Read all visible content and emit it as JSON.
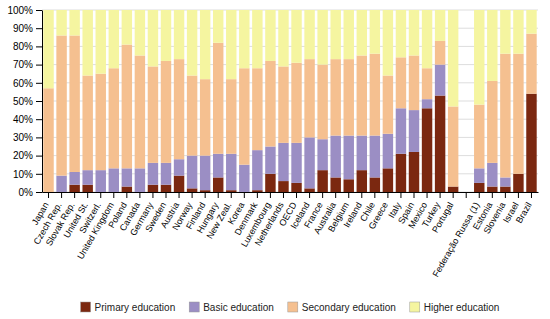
{
  "chart_data": {
    "type": "bar",
    "stacked": true,
    "categories": [
      "Japan",
      "Czech Rep.",
      "Slovak Rep.",
      "United St.",
      "Switzerl.",
      "United Kingdom",
      "Poland",
      "Canada",
      "Germany",
      "Sweden",
      "Austria",
      "Norway",
      "Finland",
      "Hungary",
      "New Zeal.",
      "Korea",
      "Denmark",
      "Luxembourg",
      "Netherlands",
      "OECD",
      "Iceland",
      "France",
      "Australia",
      "Belgium",
      "Ireland",
      "Chile",
      "Greece",
      "Italy",
      "Spain",
      "Mexico",
      "Turkey",
      "Portugal",
      null,
      "Federação Russa (1)",
      "Estonia",
      "Slovenia",
      "Israel",
      "Brazil"
    ],
    "series": [
      {
        "name": "Primary education",
        "color": "#7b2810",
        "values": [
          0,
          0,
          4,
          4,
          0,
          0,
          3,
          0,
          4,
          4,
          9,
          2,
          1,
          8,
          1,
          0,
          1,
          10,
          6,
          5,
          2,
          12,
          8,
          7,
          12,
          8,
          13,
          21,
          22,
          46,
          53,
          3,
          0,
          5,
          3,
          3,
          10,
          54
        ]
      },
      {
        "name": "Basic education",
        "color": "#9b8ec4",
        "values": [
          0,
          9,
          7,
          8,
          12,
          13,
          10,
          13,
          12,
          12,
          9,
          18,
          19,
          13,
          20,
          15,
          22,
          15,
          21,
          22,
          28,
          17,
          23,
          24,
          19,
          23,
          19,
          25,
          23,
          5,
          17,
          0,
          0,
          8,
          13,
          5,
          0,
          0
        ]
      },
      {
        "name": "Secondary education",
        "color": "#f5c090",
        "values": [
          57,
          77,
          75,
          52,
          53,
          55,
          68,
          62,
          53,
          56,
          55,
          44,
          42,
          61,
          41,
          53,
          45,
          47,
          42,
          44,
          43,
          41,
          42,
          42,
          44,
          45,
          32,
          28,
          30,
          17,
          13,
          44,
          0,
          35,
          45,
          68,
          66,
          33
        ]
      },
      {
        "name": "Higher education",
        "color": "#f5f5a0",
        "values": [
          43,
          14,
          14,
          36,
          35,
          32,
          19,
          25,
          31,
          28,
          27,
          36,
          38,
          18,
          38,
          32,
          32,
          28,
          31,
          29,
          27,
          30,
          27,
          27,
          25,
          24,
          36,
          26,
          25,
          32,
          17,
          53,
          0,
          52,
          39,
          24,
          24,
          13
        ]
      }
    ],
    "ylim": [
      0,
      100
    ],
    "yticks": [
      {
        "value": 0,
        "label": "0%"
      },
      {
        "value": 10,
        "label": "10%"
      },
      {
        "value": 20,
        "label": "20%"
      },
      {
        "value": 30,
        "label": "30%"
      },
      {
        "value": 40,
        "label": "40%"
      },
      {
        "value": 50,
        "label": "50%"
      },
      {
        "value": 60,
        "label": "60%"
      },
      {
        "value": 70,
        "label": "70%"
      },
      {
        "value": 80,
        "label": "80%"
      },
      {
        "value": 90,
        "label": "90%"
      },
      {
        "value": 100,
        "label": "100%"
      }
    ],
    "grid": true,
    "legend": "bottom"
  }
}
